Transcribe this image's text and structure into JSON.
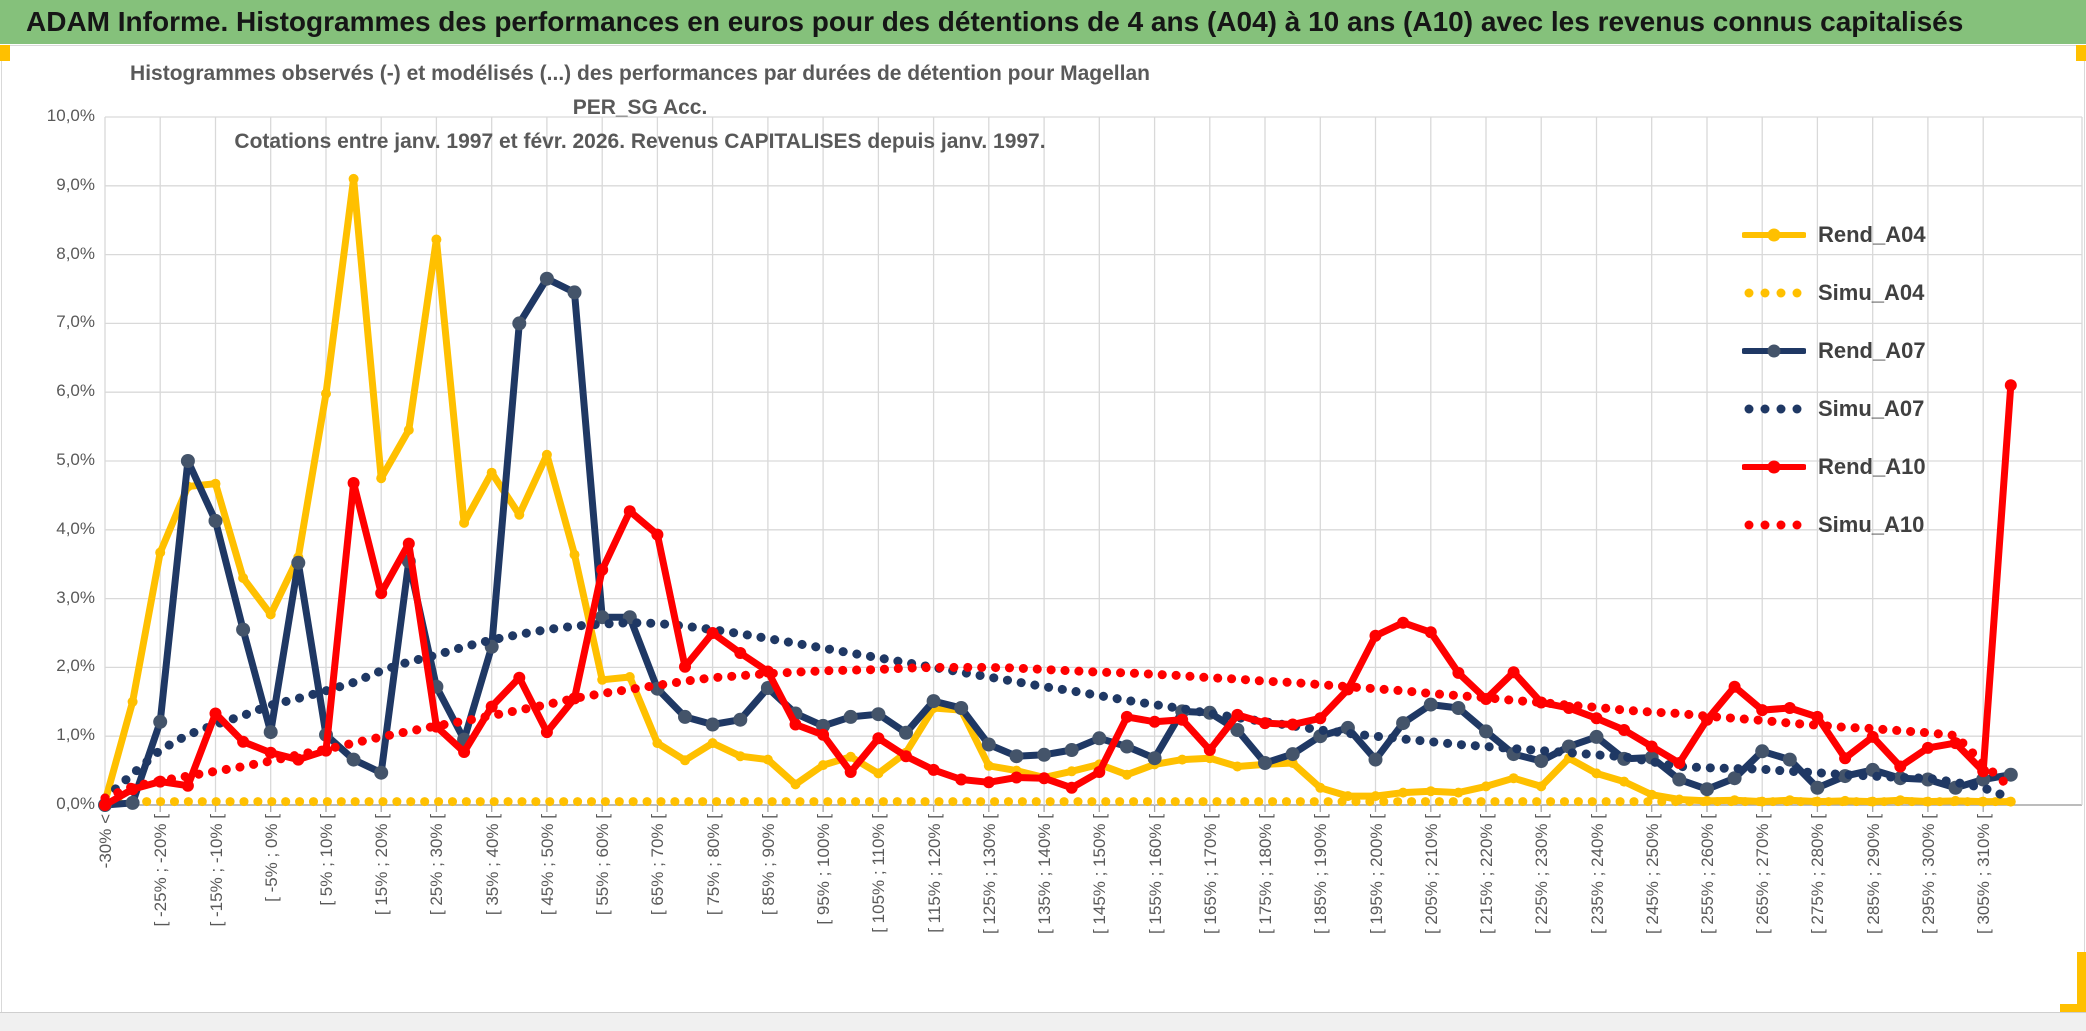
{
  "header": {
    "title": "ADAM Informe. Histogrammes des performances en euros pour des détentions de 4 ans (A04) à 10 ans (A10) avec les revenus connus capitalisés"
  },
  "chart": {
    "title_line1": "Histogrammes observés (-) et modélisés (...) des performances par durées de détention pour Magellan PER_SG Acc.",
    "title_line2": "Cotations entre janv. 1997 et févr. 2026. Revenus CAPITALISES depuis janv. 1997.",
    "y_tick_labels": [
      "10,0%",
      "9,0%",
      "8,0%",
      "7,0%",
      "6,0%",
      "5,0%",
      "4,0%",
      "3,0%",
      "2,0%",
      "1,0%",
      "0,0%"
    ],
    "colors": {
      "header_green": "#85C17B",
      "accent_gold": "#FFC000",
      "grid": "#d9d9d9",
      "axis": "#a6a6a6",
      "label_gray": "#595959",
      "legend_text": "#404040",
      "gold": "#FFC000",
      "navy": "#1F3864",
      "navy_marker": "#44546A",
      "red": "#FF0000"
    }
  },
  "chart_data": {
    "type": "line",
    "title": "Histogrammes observés (-) et modélisés (...) des performances par durées de détention pour Magellan PER_SG Acc. Cotations entre janv. 1997 et févr. 2026. Revenus CAPITALISES depuis janv. 1997.",
    "xlabel": "",
    "ylabel": "",
    "ylim": [
      0,
      10
    ],
    "y_unit": "%",
    "grid": true,
    "legend_position": "right-inside",
    "n_points": 70,
    "bins_per_label": 2,
    "x_bin_labels": [
      "-30% <",
      "[ -25% ; -20% [",
      "[ -15% ; -10% [",
      "[ -5% ; 0% [",
      "[ 5% ; 10% [",
      "[ 15% ; 20% [",
      "[ 25% ; 30% [",
      "[ 35% ; 40% [",
      "[ 45% ; 50% [",
      "[ 55% ; 60% [",
      "[ 65% ; 70% [",
      "[ 75% ; 80% [",
      "[ 85% ; 90% [",
      "[ 95% ; 100% [",
      "[ 105% ; 110% [",
      "[ 115% ; 120% [",
      "[ 125% ; 130% [",
      "[ 135% ; 140% [",
      "[ 145% ; 150% [",
      "[ 155% ; 160% [",
      "[ 165% ; 170% [",
      "[ 175% ; 180% [",
      "[ 185% ; 190% [",
      "[ 195% ; 200% [",
      "[ 205% ; 210% [",
      "[ 215% ; 220% [",
      "[ 225% ; 230% [",
      "[ 235% ; 240% [",
      "[ 245% ; 250% [",
      "[ 255% ; 260% [",
      "[ 265% ; 270% [",
      "[ 275% ; 280% [",
      "[ 285% ; 290% [",
      "[ 295% ; 300% [",
      "[ 305% ; 310% ["
    ],
    "series": [
      {
        "name": "Rend_A04",
        "color": "#FFC000",
        "style": "solid",
        "marker": true,
        "marker_color": "#FFC000",
        "marker_r": 5,
        "values": [
          0.05,
          1.5,
          3.67,
          4.63,
          4.67,
          3.3,
          2.77,
          3.6,
          5.98,
          9.1,
          4.75,
          5.45,
          8.22,
          4.1,
          4.83,
          4.22,
          5.09,
          3.64,
          1.82,
          1.86,
          0.9,
          0.65,
          0.9,
          0.71,
          0.66,
          0.3,
          0.58,
          0.7,
          0.46,
          0.76,
          1.41,
          1.38,
          0.57,
          0.5,
          0.4,
          0.49,
          0.59,
          0.44,
          0.59,
          0.66,
          0.68,
          0.56,
          0.59,
          0.61,
          0.25,
          0.13,
          0.13,
          0.18,
          0.2,
          0.18,
          0.27,
          0.39,
          0.27,
          0.68,
          0.46,
          0.34,
          0.15,
          0.08,
          0.06,
          0.07,
          0.05,
          0.07,
          0.05,
          0.06,
          0.05,
          0.07,
          0.05,
          0.06,
          0.05,
          0.05
        ]
      },
      {
        "name": "Simu_A04",
        "color": "#FFC000",
        "style": "dotted",
        "marker": false,
        "values": [
          0.02,
          0.05,
          0.05,
          0.05,
          0.05,
          0.05,
          0.05,
          0.05,
          0.05,
          0.05,
          0.05,
          0.05,
          0.05,
          0.05,
          0.05,
          0.05,
          0.05,
          0.05,
          0.05,
          0.05,
          0.05,
          0.05,
          0.05,
          0.05,
          0.05,
          0.05,
          0.05,
          0.05,
          0.05,
          0.05,
          0.05,
          0.05,
          0.05,
          0.05,
          0.05,
          0.05,
          0.05,
          0.05,
          0.05,
          0.05,
          0.05,
          0.05,
          0.05,
          0.05,
          0.05,
          0.05,
          0.05,
          0.05,
          0.05,
          0.05,
          0.05,
          0.05,
          0.05,
          0.05,
          0.05,
          0.05,
          0.05,
          0.05,
          0.05,
          0.05,
          0.05,
          0.05,
          0.05,
          0.05,
          0.05,
          0.05,
          0.05,
          0.05,
          0.05,
          0.05
        ]
      },
      {
        "name": "Rend_A07",
        "color": "#1F3864",
        "style": "solid",
        "marker": true,
        "marker_color": "#44546A",
        "marker_r": 7,
        "values": [
          0.0,
          0.03,
          1.21,
          5.0,
          4.13,
          2.55,
          1.06,
          3.52,
          1.02,
          0.66,
          0.47,
          3.54,
          1.72,
          0.95,
          2.3,
          7.0,
          7.65,
          7.45,
          2.73,
          2.73,
          1.69,
          1.28,
          1.17,
          1.24,
          1.7,
          1.33,
          1.15,
          1.28,
          1.32,
          1.05,
          1.51,
          1.41,
          0.88,
          0.71,
          0.73,
          0.8,
          0.97,
          0.85,
          0.68,
          1.36,
          1.34,
          1.09,
          0.61,
          0.74,
          1.0,
          1.12,
          0.66,
          1.19,
          1.46,
          1.41,
          1.07,
          0.74,
          0.64,
          0.85,
          0.99,
          0.67,
          0.69,
          0.37,
          0.23,
          0.39,
          0.78,
          0.66,
          0.25,
          0.42,
          0.51,
          0.39,
          0.37,
          0.25,
          0.37,
          0.44
        ]
      },
      {
        "name": "Simu_A07",
        "color": "#1F3864",
        "style": "dotted",
        "marker": false,
        "values": [
          0.1,
          0.45,
          0.8,
          1.02,
          1.17,
          1.3,
          1.45,
          1.55,
          1.66,
          1.78,
          1.95,
          2.08,
          2.18,
          2.3,
          2.4,
          2.48,
          2.55,
          2.6,
          2.63,
          2.65,
          2.64,
          2.6,
          2.55,
          2.49,
          2.42,
          2.35,
          2.28,
          2.21,
          2.14,
          2.07,
          2.0,
          1.93,
          1.86,
          1.79,
          1.72,
          1.66,
          1.59,
          1.52,
          1.46,
          1.4,
          1.33,
          1.27,
          1.21,
          1.15,
          1.09,
          1.04,
          1.0,
          0.96,
          0.92,
          0.88,
          0.85,
          0.82,
          0.79,
          0.76,
          0.73,
          0.7,
          0.63,
          0.56,
          0.54,
          0.53,
          0.52,
          0.49,
          0.47,
          0.44,
          0.42,
          0.4,
          0.39,
          0.33,
          0.25,
          0.1
        ]
      },
      {
        "name": "Rend_A10",
        "color": "#FF0000",
        "style": "solid",
        "marker": true,
        "marker_color": "#FF0000",
        "marker_r": 6,
        "values": [
          0.0,
          0.23,
          0.34,
          0.28,
          1.33,
          0.92,
          0.76,
          0.66,
          0.79,
          4.68,
          3.08,
          3.8,
          1.14,
          0.77,
          1.43,
          1.85,
          1.06,
          1.55,
          3.42,
          4.27,
          3.93,
          2.01,
          2.5,
          2.21,
          1.94,
          1.17,
          1.02,
          0.48,
          0.97,
          0.71,
          0.51,
          0.37,
          0.33,
          0.4,
          0.39,
          0.25,
          0.48,
          1.28,
          1.21,
          1.24,
          0.8,
          1.31,
          1.19,
          1.17,
          1.26,
          1.68,
          2.46,
          2.65,
          2.51,
          1.92,
          1.54,
          1.93,
          1.49,
          1.41,
          1.26,
          1.09,
          0.85,
          0.61,
          1.24,
          1.72,
          1.38,
          1.41,
          1.28,
          0.68,
          0.99,
          0.56,
          0.83,
          0.9,
          0.49,
          6.1
        ]
      },
      {
        "name": "Simu_A10",
        "color": "#FF0000",
        "style": "dotted",
        "marker": false,
        "values": [
          0.1,
          0.27,
          0.35,
          0.42,
          0.49,
          0.56,
          0.64,
          0.73,
          0.81,
          0.9,
          0.99,
          1.07,
          1.15,
          1.22,
          1.3,
          1.38,
          1.46,
          1.55,
          1.62,
          1.68,
          1.74,
          1.8,
          1.85,
          1.88,
          1.91,
          1.93,
          1.95,
          1.96,
          1.97,
          1.99,
          2.0,
          2.0,
          2.0,
          1.99,
          1.97,
          1.95,
          1.93,
          1.92,
          1.9,
          1.88,
          1.85,
          1.83,
          1.8,
          1.78,
          1.75,
          1.72,
          1.69,
          1.66,
          1.62,
          1.59,
          1.56,
          1.52,
          1.49,
          1.45,
          1.42,
          1.38,
          1.35,
          1.33,
          1.29,
          1.26,
          1.23,
          1.19,
          1.16,
          1.13,
          1.11,
          1.08,
          1.05,
          1.01,
          0.6,
          0.25
        ]
      }
    ]
  }
}
